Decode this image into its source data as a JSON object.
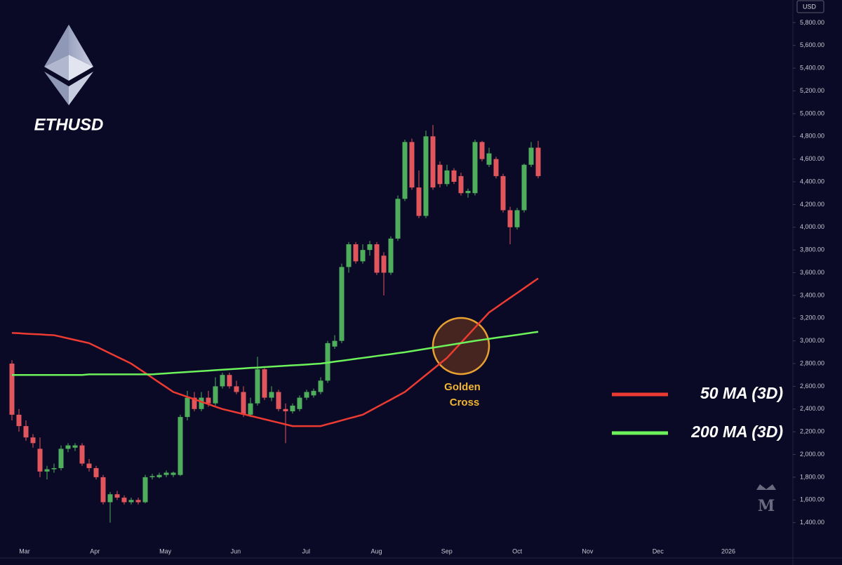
{
  "chart_data": {
    "type": "candlestick",
    "title": "ETHUSD",
    "currency": "USD",
    "annotation": [
      "Golden",
      "Cross"
    ],
    "xticks": [
      "Mar",
      "Apr",
      "May",
      "Jun",
      "Jul",
      "Aug",
      "Sep",
      "Oct",
      "Nov",
      "Dec",
      "2026"
    ],
    "ylim": [
      1120,
      6000
    ],
    "yticks": [
      {
        "value": 1400,
        "label": "1,400.00"
      },
      {
        "value": 1600,
        "label": "1,600.00"
      },
      {
        "value": 1800,
        "label": "1,800.00"
      },
      {
        "value": 2000,
        "label": "2,000.00"
      },
      {
        "value": 2200,
        "label": "2,200.00"
      },
      {
        "value": 2400,
        "label": "2,400.00"
      },
      {
        "value": 2600,
        "label": "2,600.00"
      },
      {
        "value": 2800,
        "label": "2,800.00"
      },
      {
        "value": 3000,
        "label": "3,000.00"
      },
      {
        "value": 3200,
        "label": "3,200.00"
      },
      {
        "value": 3400,
        "label": "3,400.00"
      },
      {
        "value": 3600,
        "label": "3,600.00"
      },
      {
        "value": 3800,
        "label": "3,800.00"
      },
      {
        "value": 4000,
        "label": "4,000.00"
      },
      {
        "value": 4200,
        "label": "4,200.00"
      },
      {
        "value": 4400,
        "label": "4,400.00"
      },
      {
        "value": 4600,
        "label": "4,600.00"
      },
      {
        "value": 4800,
        "label": "4,800.00"
      },
      {
        "value": 5000,
        "label": "5,000.00"
      },
      {
        "value": 5200,
        "label": "5,200.00"
      },
      {
        "value": 5400,
        "label": "5,400.00"
      },
      {
        "value": 5600,
        "label": "5,600.00"
      },
      {
        "value": 5800,
        "label": "5,800.00"
      }
    ],
    "candles": {
      "up_color": "#4fae5c",
      "down_color": "#e0565c",
      "open": [
        2800,
        2350,
        2250,
        2150,
        2050,
        1850,
        1870,
        1880,
        2050,
        2060,
        2080,
        1920,
        1880,
        1800,
        1580,
        1650,
        1620,
        1580,
        1600,
        1580,
        1800,
        1800,
        1820,
        1820,
        1820,
        2330,
        2500,
        2400,
        2500,
        2450,
        2600,
        2700,
        2600,
        2550,
        2350,
        2450,
        2750,
        2500,
        2550,
        2400,
        2380,
        2400,
        2500,
        2520,
        2550,
        2650,
        2950,
        3000,
        3650,
        3850,
        3700,
        3800,
        3850,
        3750,
        3600,
        3900,
        4250,
        4750,
        4350,
        4100,
        4800,
        4550,
        4380,
        4500,
        4450,
        4300,
        4300,
        4750,
        4550,
        4600,
        4450,
        4150,
        4000,
        4150,
        4550,
        4700
      ],
      "high": [
        2830,
        2400,
        2300,
        2180,
        2150,
        1900,
        1920,
        2080,
        2100,
        2100,
        2100,
        1960,
        1900,
        1820,
        1670,
        1680,
        1640,
        1620,
        1620,
        1820,
        1830,
        1840,
        1860,
        1850,
        2350,
        2560,
        2550,
        2550,
        2560,
        2680,
        2720,
        2720,
        2650,
        2600,
        2500,
        2860,
        2760,
        2600,
        2570,
        2450,
        2450,
        2520,
        2570,
        2580,
        2680,
        3000,
        3050,
        3680,
        3870,
        3870,
        3850,
        3880,
        3870,
        3780,
        3920,
        4280,
        4770,
        4780,
        4500,
        4850,
        4900,
        4580,
        4550,
        4520,
        4480,
        4340,
        4770,
        4760,
        4700,
        4620,
        4470,
        4180,
        4170,
        4560,
        4750,
        4760
      ],
      "low": [
        2300,
        2200,
        2120,
        2060,
        1800,
        1780,
        1840,
        1860,
        2020,
        2030,
        1900,
        1850,
        1780,
        1560,
        1400,
        1600,
        1560,
        1560,
        1560,
        1570,
        1780,
        1790,
        1800,
        1800,
        1810,
        2300,
        2380,
        2380,
        2420,
        2430,
        2580,
        2580,
        2530,
        2330,
        2330,
        2430,
        2480,
        2470,
        2380,
        2100,
        2360,
        2380,
        2480,
        2500,
        2530,
        2630,
        2930,
        2980,
        3600,
        3680,
        3680,
        3750,
        3580,
        3400,
        3580,
        3880,
        4230,
        4330,
        4080,
        4080,
        4330,
        4350,
        4360,
        4380,
        4280,
        4260,
        4280,
        4580,
        4530,
        4430,
        4130,
        3850,
        3980,
        4130,
        4530,
        4430
      ],
      "close": [
        2350,
        2250,
        2150,
        2100,
        1850,
        1870,
        1880,
        2050,
        2080,
        2080,
        1920,
        1880,
        1800,
        1580,
        1650,
        1620,
        1580,
        1600,
        1580,
        1800,
        1810,
        1820,
        1840,
        1840,
        2330,
        2500,
        2400,
        2500,
        2450,
        2600,
        2700,
        2600,
        2550,
        2350,
        2450,
        2750,
        2500,
        2550,
        2400,
        2380,
        2430,
        2500,
        2550,
        2560,
        2650,
        2980,
        3000,
        3650,
        3850,
        3700,
        3800,
        3850,
        3600,
        3600,
        3900,
        4250,
        4750,
        4350,
        4100,
        4800,
        4350,
        4380,
        4500,
        4400,
        4300,
        4320,
        4750,
        4600,
        4650,
        4450,
        4150,
        4000,
        4150,
        4550,
        4700,
        4450
      ]
    },
    "series": [
      {
        "name": "50 MA (3D)",
        "color": "#ee3b32",
        "values": [
          3070,
          3067,
          3063,
          3060,
          3057,
          3053,
          3050,
          3036,
          3022,
          3008,
          2994,
          2980,
          2950,
          2920,
          2890,
          2860,
          2830,
          2800,
          2758,
          2717,
          2675,
          2633,
          2592,
          2550,
          2529,
          2507,
          2486,
          2464,
          2443,
          2421,
          2400,
          2385,
          2370,
          2355,
          2340,
          2325,
          2310,
          2295,
          2280,
          2265,
          2250,
          2250,
          2250,
          2250,
          2250,
          2267,
          2283,
          2300,
          2317,
          2333,
          2350,
          2383,
          2417,
          2450,
          2483,
          2517,
          2550,
          2600,
          2650,
          2700,
          2750,
          2800,
          2850,
          2917,
          2983,
          3050,
          3117,
          3183,
          3250,
          3293,
          3336,
          3379,
          3421,
          3464,
          3507,
          3550
        ]
      },
      {
        "name": "200 MA (3D)",
        "color": "#6cf25a",
        "values": [
          2700,
          2700,
          2700,
          2700,
          2700,
          2700,
          2700,
          2700,
          2700,
          2700,
          2700,
          2705,
          2705,
          2705,
          2705,
          2705,
          2705,
          2705,
          2705,
          2705,
          2705,
          2710,
          2714,
          2718,
          2722,
          2726,
          2730,
          2734,
          2738,
          2742,
          2746,
          2750,
          2754,
          2758,
          2762,
          2765,
          2769,
          2773,
          2777,
          2781,
          2785,
          2788,
          2792,
          2796,
          2800,
          2808,
          2817,
          2825,
          2833,
          2842,
          2850,
          2858,
          2867,
          2875,
          2883,
          2892,
          2900,
          2910,
          2920,
          2930,
          2940,
          2950,
          2960,
          2970,
          2980,
          2990,
          3000,
          3009,
          3018,
          3027,
          3036,
          3044,
          3053,
          3062,
          3071,
          3080
        ]
      }
    ]
  }
}
